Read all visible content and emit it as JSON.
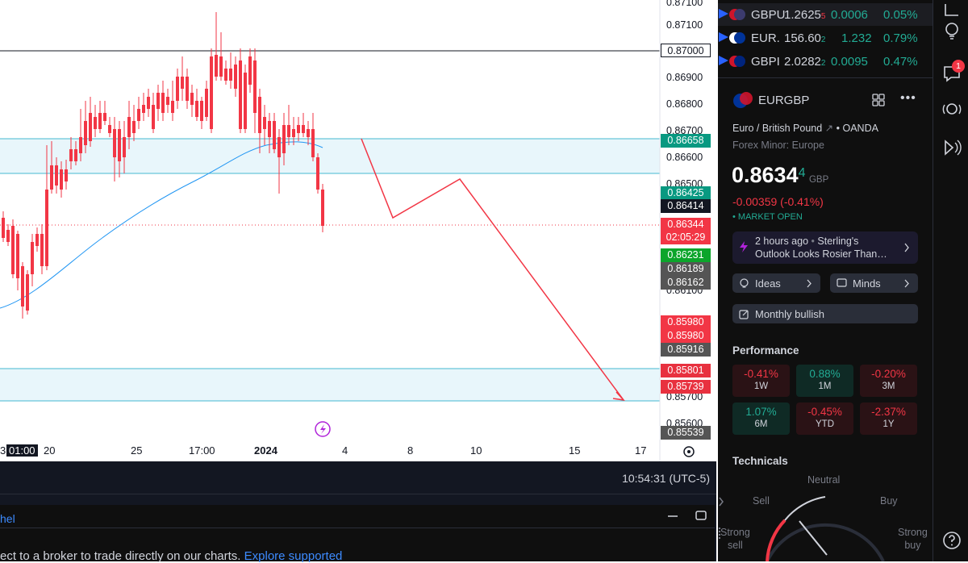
{
  "chart": {
    "price_scale": [
      "0.87100",
      "0.86900",
      "0.86800",
      "0.86700",
      "0.86600",
      "0.86500",
      "0.86100",
      "0.85700",
      "0.85600"
    ],
    "badges": [
      "0.87000",
      "0.86658",
      "0.86425",
      "0.86414",
      "0.86344",
      "02:05:29",
      "0.86231",
      "0.86189",
      "0.86162",
      "0.85980",
      "0.85980",
      "0.85916",
      "0.85801",
      "0.85739",
      "0.85539"
    ],
    "time_labels": [
      "3",
      "01:00",
      "20",
      "25",
      "17:00",
      "2024",
      "4",
      "8",
      "10",
      "15",
      "17"
    ],
    "colors": {
      "up": "#2962ff",
      "down": "#f23645",
      "ma": "#2196f3",
      "zone": "#e8f6fb",
      "zone_line": "#45b8d1",
      "projection": "#f23645"
    }
  },
  "bottom": {
    "clock": "10:54:31 (UTC-5)",
    "panel_title": "hel",
    "promo_text": "ect to a broker to trade directly on our charts.",
    "promo_link": "Explore supported"
  },
  "watchlist": [
    {
      "symbol": "GBPU",
      "price": "1.2625",
      "price_tail": "5",
      "change": "0.0006",
      "percent": "0.05%"
    },
    {
      "symbol": "EUR.",
      "price": "156.60",
      "price_tail": "2",
      "change": "1.232",
      "percent": "0.79%"
    },
    {
      "symbol": "GBPI",
      "price": "2.0282",
      "price_tail": "2",
      "change": "0.0095",
      "percent": "0.47%"
    }
  ],
  "details": {
    "symbol": "EURGBP",
    "name": "Euro / British Pound",
    "exchange": "OANDA",
    "category": "Forex Minor: Europe",
    "price_main": "0.8634",
    "price_sup": "4",
    "currency": "GBP",
    "change": "-0.00359 (-0.41%)",
    "status": "MARKET OPEN",
    "news_time": "2 hours ago",
    "news_title": "Sterling's",
    "news_line2": "Outlook Looks Rosier Than…",
    "ideas_label": "Ideas",
    "minds_label": "Minds",
    "monthly_label": "Monthly bullish"
  },
  "performance": {
    "title": "Performance",
    "cells": [
      {
        "value": "-0.41%",
        "period": "1W",
        "sign": "neg"
      },
      {
        "value": "0.88%",
        "period": "1M",
        "sign": "pos"
      },
      {
        "value": "-0.20%",
        "period": "3M",
        "sign": "neg"
      },
      {
        "value": "1.07%",
        "period": "6M",
        "sign": "pos"
      },
      {
        "value": "-0.45%",
        "period": "YTD",
        "sign": "neg"
      },
      {
        "value": "-2.37%",
        "period": "1Y",
        "sign": "neg"
      }
    ]
  },
  "technicals": {
    "title": "Technicals",
    "neutral": "Neutral",
    "sell": "Sell",
    "buy": "Buy",
    "strong_sell_1": "Strong",
    "strong_sell_2": "sell",
    "strong_buy_1": "Strong",
    "strong_buy_2": "buy"
  },
  "icon_bar": {
    "notification_count": "1"
  }
}
